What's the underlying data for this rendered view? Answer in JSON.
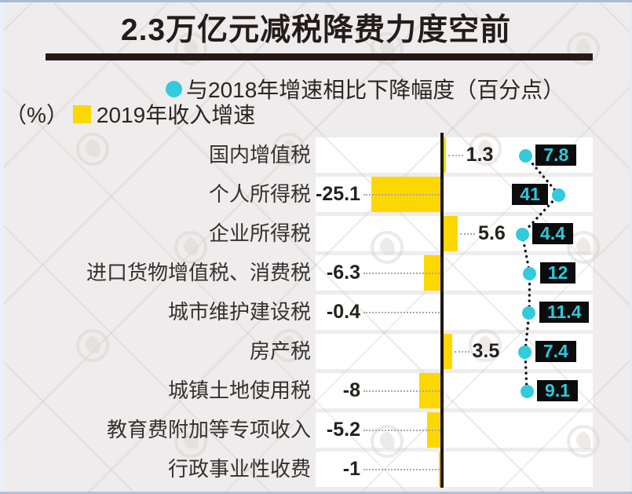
{
  "header": {
    "title": "2.3万亿元减税降费力度空前"
  },
  "legend": {
    "unit_label": "（%）",
    "drop_marker": "circle-icon",
    "drop_label": "与2018年增速相比下降幅度（百分点）",
    "growth_marker": "square-icon",
    "growth_label": "2019年收入增速"
  },
  "colors": {
    "bar_yellow": "#fdd700",
    "dot_cyan": "#33cbdb",
    "badge_bg": "#0c0c0c",
    "badge_text": "#30c8da",
    "axis_black": "#1d1512",
    "band_white": "#ffffff",
    "background": "#eeecec"
  },
  "chart_data": {
    "type": "bar",
    "orientation": "horizontal",
    "title": "2.3万亿元减税降费力度空前",
    "xlabel": "",
    "ylabel": "",
    "unit": "%",
    "grid": false,
    "legend_position": "top",
    "categories": [
      "国内增值税",
      "个人所得税",
      "企业所得税",
      "进口货物增值税、消费税",
      "城市维护建设税",
      "房产税",
      "城镇土地使用税",
      "教育费附加等专项收入",
      "行政事业性收费"
    ],
    "series": [
      {
        "name": "2019年收入增速",
        "style": "bar",
        "color": "#fdd700",
        "values": [
          1.3,
          -25.1,
          5.6,
          -6.3,
          -0.4,
          3.5,
          -8,
          -5.2,
          -1
        ]
      },
      {
        "name": "与2018年增速相比下降幅度（百分点）",
        "style": "dotted-line-with-markers",
        "color": "#33cbdb",
        "values": [
          7.8,
          41,
          4.4,
          12,
          11.4,
          7.4,
          9.1,
          null,
          null
        ]
      }
    ]
  }
}
